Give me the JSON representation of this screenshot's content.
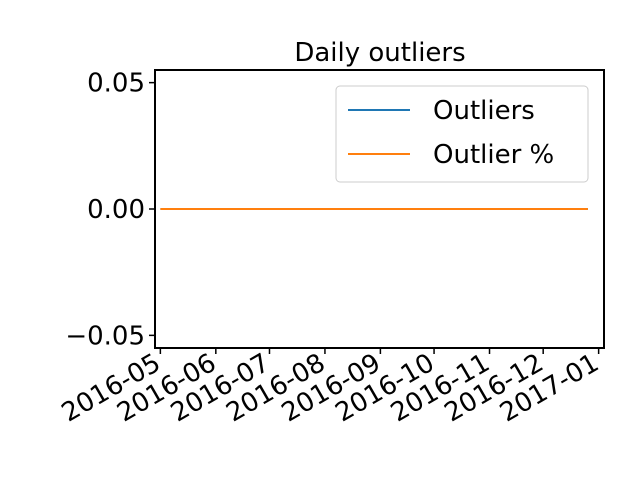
{
  "chart_data": {
    "type": "line",
    "title": "Daily outliers",
    "xlabel": "",
    "ylabel": "",
    "x_range": [
      "2016-04-28",
      "2017-01-04"
    ],
    "ylim": [
      -0.055,
      0.055
    ],
    "x_ticks": [
      "2016-05",
      "2016-06",
      "2016-07",
      "2016-08",
      "2016-09",
      "2016-10",
      "2016-11",
      "2016-12",
      "2017-01"
    ],
    "y_ticks": [
      {
        "value": 0.05,
        "label": "0.05"
      },
      {
        "value": 0.0,
        "label": "0.00"
      },
      {
        "value": -0.05,
        "label": "−0.05"
      }
    ],
    "grid": false,
    "legend_position": "top-right",
    "series": [
      {
        "name": "Outliers",
        "color": "#1f77b4",
        "x": [
          "2016-05-01",
          "2016-12-26"
        ],
        "y": [
          0,
          0
        ]
      },
      {
        "name": "Outlier %",
        "color": "#ff7f0e",
        "x": [
          "2016-05-01",
          "2016-12-26"
        ],
        "y": [
          0,
          0
        ]
      }
    ]
  }
}
